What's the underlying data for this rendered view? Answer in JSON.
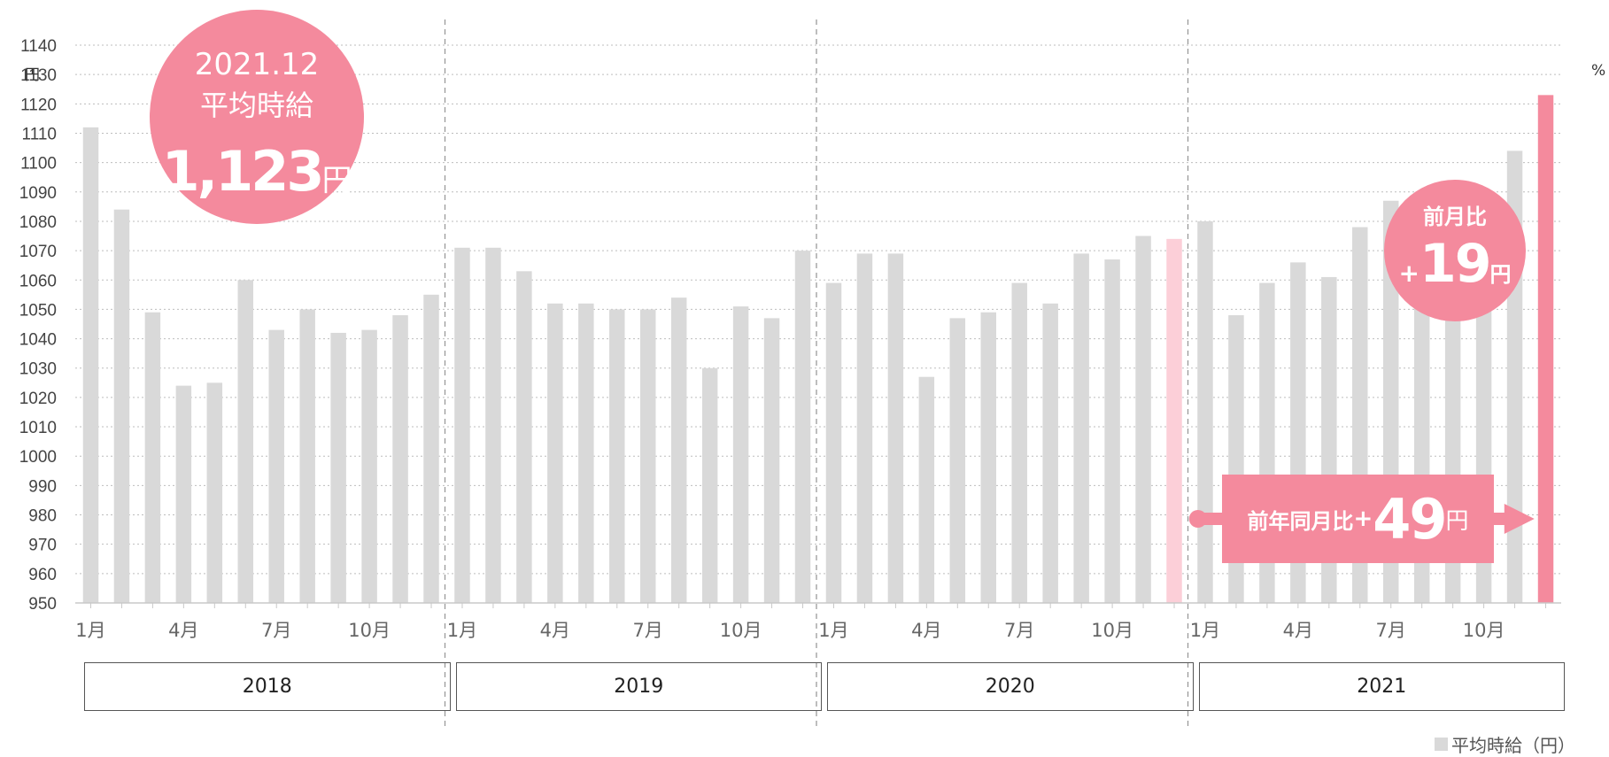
{
  "chart_data": {
    "type": "bar",
    "title": "",
    "unit_left": "円",
    "unit_right": "%",
    "ylim": [
      950,
      1140
    ],
    "yticks": [
      950,
      960,
      970,
      980,
      990,
      1000,
      1010,
      1020,
      1030,
      1040,
      1050,
      1060,
      1070,
      1080,
      1090,
      1100,
      1110,
      1120,
      1130,
      1140
    ],
    "grid": true,
    "years": [
      "2018",
      "2019",
      "2020",
      "2021"
    ],
    "month_labels": [
      {
        "index": 0,
        "label": "1月"
      },
      {
        "index": 3,
        "label": "4月"
      },
      {
        "index": 6,
        "label": "7月"
      },
      {
        "index": 9,
        "label": "10月"
      }
    ],
    "series": [
      {
        "name": "平均時給（円）",
        "color": "#d9d9d9",
        "highlight_color": "#f48a9d",
        "reference_color": "#fccfd8",
        "values": [
          1112,
          1084,
          1049,
          1024,
          1025,
          1060,
          1043,
          1050,
          1042,
          1043,
          1048,
          1055,
          1071,
          1071,
          1063,
          1052,
          1052,
          1050,
          1050,
          1054,
          1030,
          1051,
          1047,
          1070,
          1059,
          1069,
          1069,
          1027,
          1047,
          1049,
          1059,
          1052,
          1069,
          1067,
          1075,
          1074,
          1080,
          1048,
          1059,
          1066,
          1061,
          1078,
          1087,
          1080,
          1080,
          1090,
          1104,
          1123
        ],
        "highlight_index": 47,
        "reference_index": 35
      }
    ],
    "legend": {
      "label": "平均時給（円）",
      "position": "bottom-right"
    }
  },
  "callouts": {
    "current": {
      "date": "2021.12",
      "label": "平均時給",
      "value": "1,123",
      "unit": "円"
    },
    "month_over_month": {
      "label": "前月比",
      "sign": "+",
      "value": "19",
      "unit": "円"
    },
    "year_over_year": {
      "label": "前年同月比",
      "sign": "+",
      "value": "49",
      "unit": "円"
    }
  }
}
